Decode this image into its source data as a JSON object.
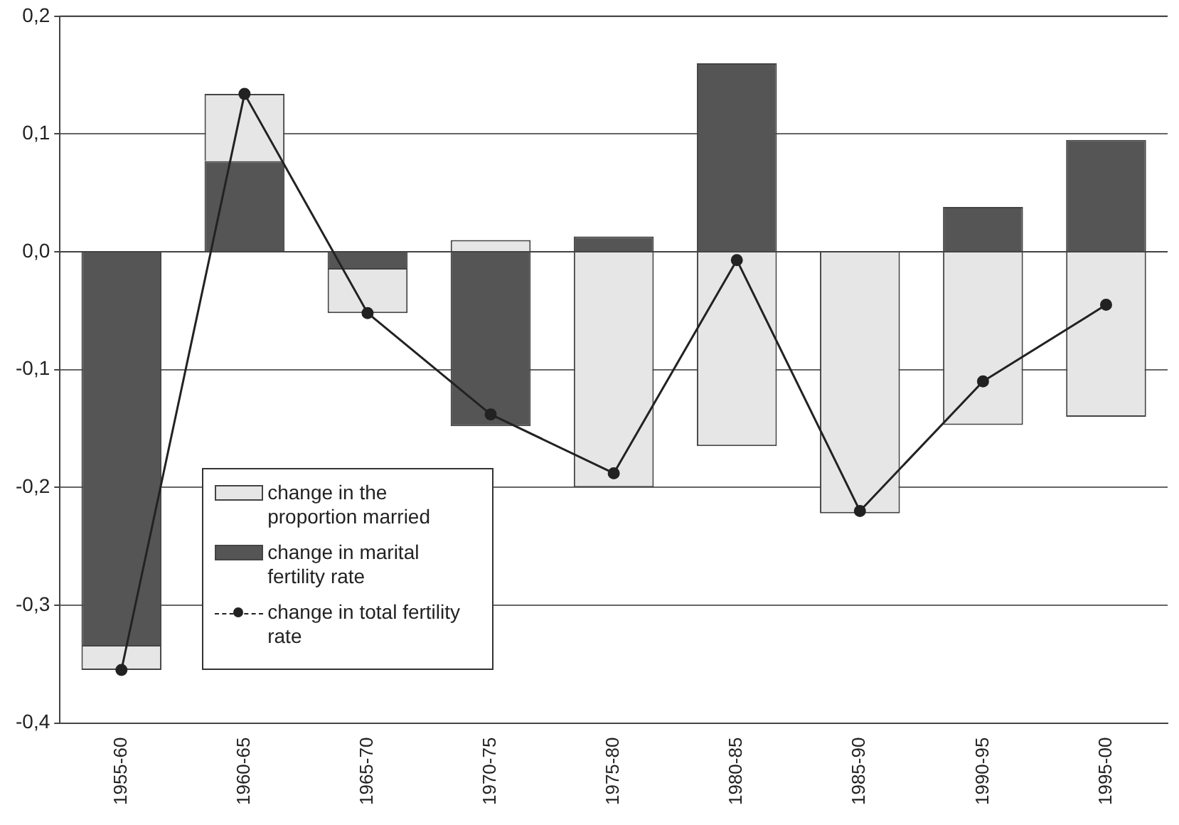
{
  "chart_data": {
    "type": "bar",
    "stacked": true,
    "categories": [
      "1955-60",
      "1960-65",
      "1965-70",
      "1970-75",
      "1975-80",
      "1980-85",
      "1985-90",
      "1990-95",
      "1995-00"
    ],
    "series": [
      {
        "name": "change in marital fertility rate",
        "color": "#555555",
        "values": [
          -0.335,
          0.077,
          -0.015,
          -0.148,
          0.013,
          0.16,
          null,
          0.038,
          0.095
        ]
      },
      {
        "name": "change in the proportion married",
        "color": "#e6e6e6",
        "values": [
          -0.02,
          0.057,
          -0.037,
          0.01,
          -0.2,
          -0.165,
          -0.222,
          -0.147,
          -0.14
        ]
      },
      {
        "name": "change in total fertility rate",
        "type": "line",
        "color": "#222222",
        "marker": "circle",
        "values": [
          -0.355,
          0.134,
          -0.052,
          -0.138,
          -0.188,
          -0.007,
          -0.22,
          -0.11,
          -0.045
        ]
      }
    ],
    "ylim": [
      -0.4,
      0.2
    ],
    "yticks": [
      {
        "value": -0.4,
        "label": "-0,4"
      },
      {
        "value": -0.3,
        "label": "-0,3"
      },
      {
        "value": -0.2,
        "label": "-0,2"
      },
      {
        "value": -0.1,
        "label": "-0,1"
      },
      {
        "value": 0,
        "label": "0,0"
      },
      {
        "value": 0.1,
        "label": "0,1"
      },
      {
        "value": 0.2,
        "label": "0,2"
      }
    ],
    "grid": "y",
    "legend": "bottom left"
  }
}
